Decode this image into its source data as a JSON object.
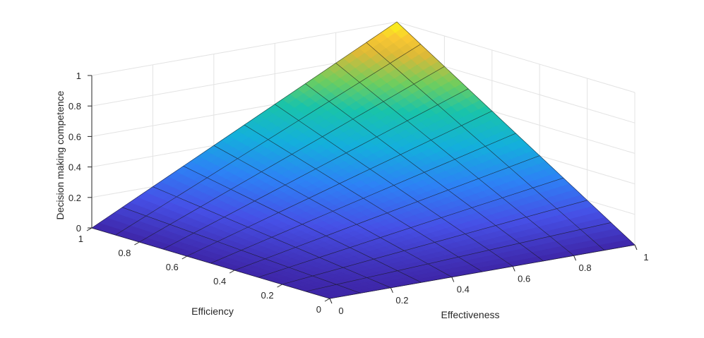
{
  "chart_data": {
    "type": "surface",
    "x": [
      0,
      0.1,
      0.2,
      0.3,
      0.4,
      0.5,
      0.6,
      0.7,
      0.8,
      0.9,
      1
    ],
    "y": [
      0,
      0.1,
      0.2,
      0.3,
      0.4,
      0.5,
      0.6,
      0.7,
      0.8,
      0.9,
      1
    ],
    "z_formula": "z = x * y",
    "xlabel": "Effectiveness",
    "ylabel": "Efficiency",
    "zlabel": "Decision making competence",
    "xlim": [
      0,
      1
    ],
    "ylim": [
      0,
      1
    ],
    "zlim": [
      0,
      1
    ],
    "x_ticks": [
      "0",
      "0.2",
      "0.4",
      "0.6",
      "0.8",
      "1"
    ],
    "y_ticks": [
      "0",
      "0.2",
      "0.4",
      "0.6",
      "0.8",
      "1"
    ],
    "z_ticks": [
      "0",
      "0.2",
      "0.4",
      "0.6",
      "0.8",
      "1"
    ],
    "colormap": "parula",
    "grid": true
  }
}
